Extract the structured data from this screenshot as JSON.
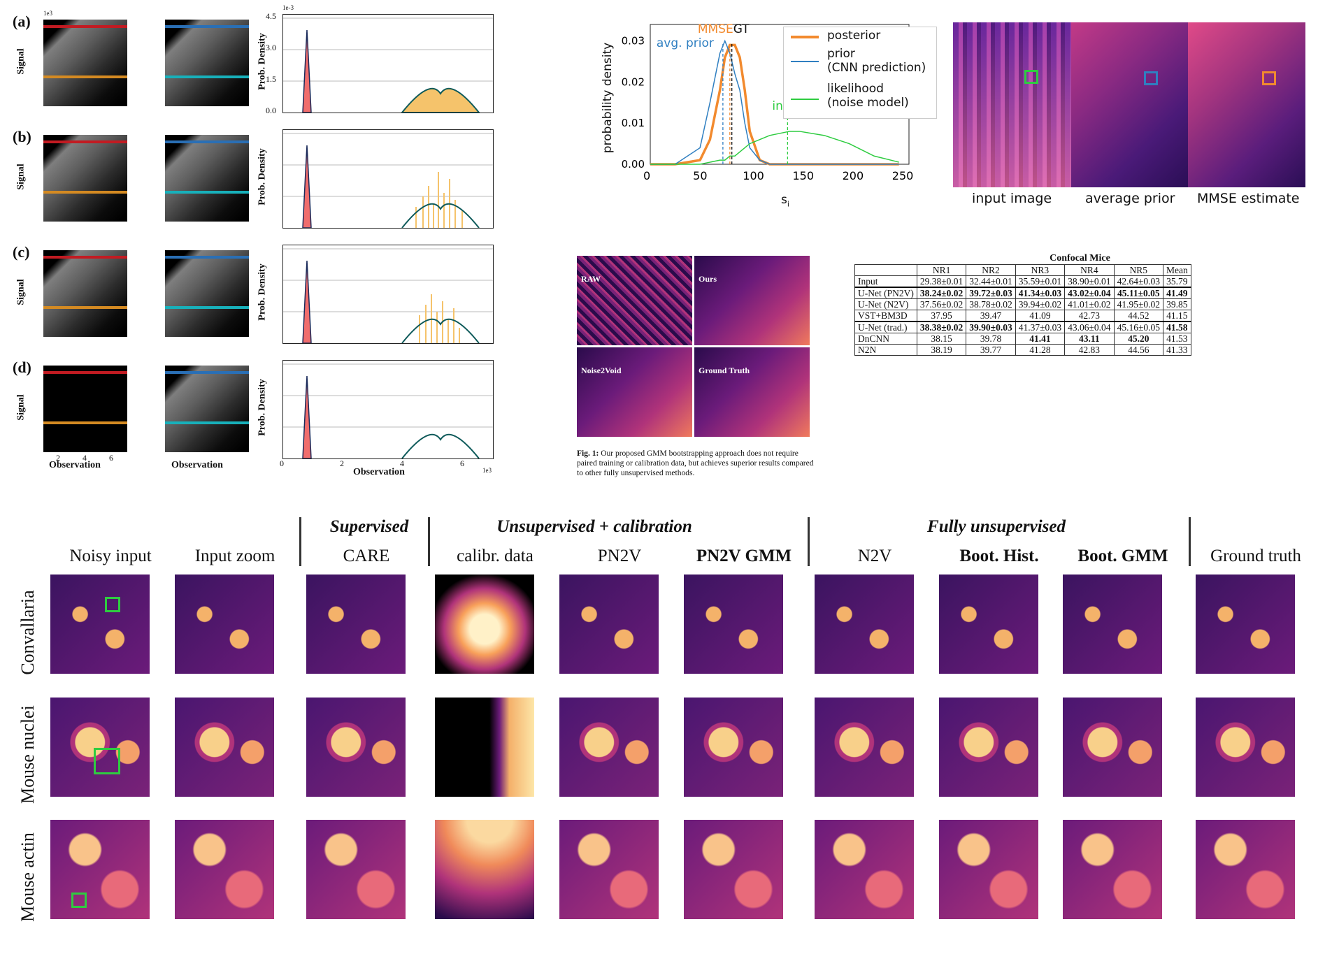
{
  "panel_a": {
    "rows": [
      {
        "label": "(a)"
      },
      {
        "label": "(b)"
      },
      {
        "label": "(c)"
      },
      {
        "label": "(d)"
      }
    ],
    "signal_label": "Signal",
    "observation_label": "Observation",
    "density_label": "Prob. Density",
    "exp_label": "1e3",
    "exp_label_small": "1e-3",
    "signal_ticks": [
      "2",
      "4",
      "6"
    ],
    "obs_ticks": [
      "2",
      "4",
      "6"
    ],
    "density_ticks": [
      "4.5",
      "3.0",
      "1.5",
      "0.0"
    ],
    "hist_xticks": [
      "0",
      "2",
      "4",
      "6"
    ],
    "colors": {
      "red": "#c21b22",
      "orange": "#d48a22",
      "blue": "#2a6fb5",
      "cyan": "#18b0ba",
      "pink": "#f06d6d",
      "yellow": "#f5c36b"
    }
  },
  "posterior_plot": {
    "ylabel": "probability density",
    "xlabel": "s",
    "xlabel_sub": "i",
    "yticks": [
      "0.00",
      "0.01",
      "0.02",
      "0.03"
    ],
    "xticks": [
      "0",
      "50",
      "100",
      "150",
      "200",
      "250"
    ],
    "annotations": {
      "mmse": "MMSE",
      "gt": "GT",
      "avg_prior": "avg. prior",
      "input": "input"
    },
    "legend": [
      {
        "label": "posterior",
        "color": "#f28a2e"
      },
      {
        "label": "prior",
        "sub": "(CNN prediction)",
        "color": "#2f7fc1"
      },
      {
        "label": "likelihood",
        "sub": "(noise model)",
        "color": "#2ecc40"
      }
    ],
    "image_labels": [
      "input image",
      "average prior",
      "MMSE estimate"
    ]
  },
  "chart_data": {
    "type": "line",
    "x": [
      0,
      25,
      50,
      60,
      70,
      75,
      80,
      85,
      90,
      95,
      100,
      110,
      120,
      140,
      150,
      175,
      200,
      225,
      250
    ],
    "series": [
      {
        "name": "posterior",
        "values": [
          0,
          0,
          0.001,
          0.006,
          0.018,
          0.026,
          0.029,
          0.029,
          0.026,
          0.018,
          0.008,
          0.001,
          0,
          0,
          0,
          0,
          0,
          0,
          0
        ]
      },
      {
        "name": "prior",
        "values": [
          0,
          0,
          0.004,
          0.015,
          0.027,
          0.03,
          0.027,
          0.022,
          0.018,
          0.01,
          0.004,
          0.001,
          0,
          0,
          0,
          0,
          0,
          0,
          0
        ]
      },
      {
        "name": "likelihood",
        "values": [
          0,
          0,
          0,
          0.0005,
          0.001,
          0.001,
          0.002,
          0.002,
          0.003,
          0.004,
          0.005,
          0.006,
          0.007,
          0.008,
          0.008,
          0.007,
          0.005,
          0.002,
          0.0005
        ]
      }
    ],
    "xlim": [
      0,
      260
    ],
    "ylim": [
      0,
      0.034
    ],
    "markers": {
      "avg_prior": 73,
      "mmse": 80,
      "gt": 82,
      "input": 138
    }
  },
  "small_figure": {
    "tiles": [
      "RAW",
      "Ours",
      "Noise2Void",
      "Ground Truth"
    ],
    "caption_bold": "Fig. 1:",
    "caption": "Our proposed GMM bootstrapping approach does not require paired training or calibration data, but achieves superior results compared to other fully unsupervised methods."
  },
  "confocal_table": {
    "title": "Confocal Mice",
    "headers": [
      "",
      "NR1",
      "NR2",
      "NR3",
      "NR4",
      "NR5",
      "Mean"
    ],
    "rows": [
      {
        "cells": [
          "Input",
          "29.38±0.01",
          "32.44±0.01",
          "35.59±0.01",
          "38.90±0.01",
          "42.64±0.03",
          "35.79"
        ],
        "bold": []
      },
      {
        "cells": [
          "U-Net (PN2V)",
          "38.24±0.02",
          "39.72±0.03",
          "41.34±0.03",
          "43.02±0.04",
          "45.11±0.05",
          "41.49"
        ],
        "bold": [
          1,
          2,
          3,
          4,
          5,
          6
        ],
        "topline": true
      },
      {
        "cells": [
          "U-Net (N2V)",
          "37.56±0.02",
          "38.78±0.02",
          "39.94±0.02",
          "41.01±0.02",
          "41.95±0.02",
          "39.85"
        ],
        "bold": []
      },
      {
        "cells": [
          "VST+BM3D",
          "37.95",
          "39.47",
          "41.09",
          "42.73",
          "44.52",
          "41.15"
        ],
        "bold": []
      },
      {
        "cells": [
          "U-Net (trad.)",
          "38.38±0.02",
          "39.90±0.03",
          "41.37±0.03",
          "43.06±0.04",
          "45.16±0.05",
          "41.58"
        ],
        "bold": [
          1,
          2,
          6
        ],
        "topline": true
      },
      {
        "cells": [
          "DnCNN",
          "38.15",
          "39.78",
          "41.41",
          "43.11",
          "45.20",
          "41.53"
        ],
        "bold": [
          3,
          4,
          5
        ]
      },
      {
        "cells": [
          "N2N",
          "38.19",
          "39.77",
          "41.28",
          "42.83",
          "44.56",
          "41.33"
        ],
        "bold": []
      }
    ]
  },
  "comparison": {
    "groups": [
      "Supervised",
      "Unsupervised + calibration",
      "Fully unsupervised"
    ],
    "columns": [
      "Noisy input",
      "Input zoom",
      "CARE",
      "calibr. data",
      "PN2V",
      "PN2V GMM",
      "N2V",
      "Boot. Hist.",
      "Boot. GMM",
      "Ground truth"
    ],
    "rows": [
      "Convallaria",
      "Mouse nuclei",
      "Mouse actin"
    ]
  }
}
